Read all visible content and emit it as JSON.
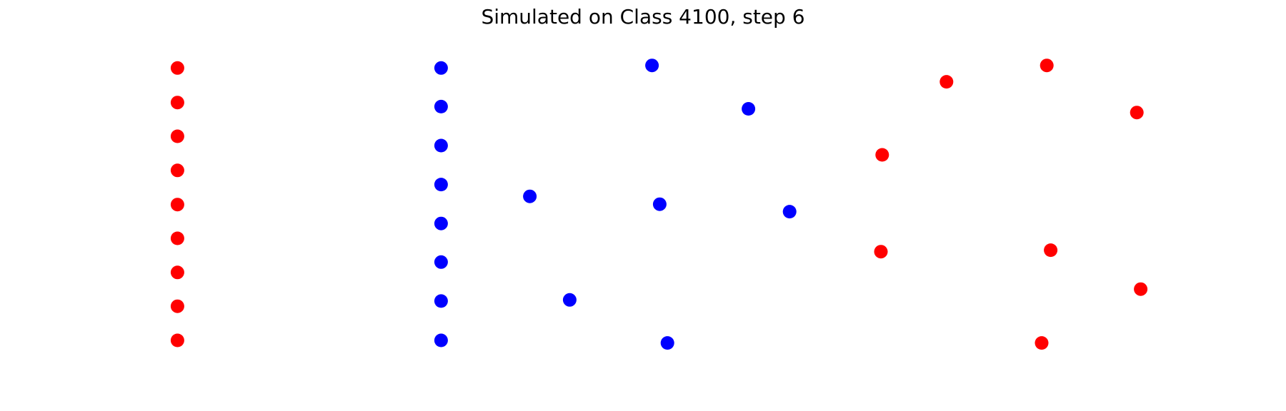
{
  "chart_data": {
    "type": "scatter",
    "title": "Simulated on Class 4100, step 6",
    "axes_visible": false,
    "grid": false,
    "xlim": [
      0,
      1
    ],
    "ylim": [
      0,
      1
    ],
    "series": [
      {
        "color": "#ff0000",
        "points": [
          {
            "x": 0.138,
            "y": 0.909
          },
          {
            "x": 0.138,
            "y": 0.816
          },
          {
            "x": 0.138,
            "y": 0.725
          },
          {
            "x": 0.138,
            "y": 0.633
          },
          {
            "x": 0.138,
            "y": 0.541
          },
          {
            "x": 0.138,
            "y": 0.45
          },
          {
            "x": 0.138,
            "y": 0.358
          },
          {
            "x": 0.138,
            "y": 0.267
          },
          {
            "x": 0.138,
            "y": 0.175
          },
          {
            "x": 0.814,
            "y": 0.916
          },
          {
            "x": 0.736,
            "y": 0.872
          },
          {
            "x": 0.884,
            "y": 0.789
          },
          {
            "x": 0.686,
            "y": 0.675
          },
          {
            "x": 0.685,
            "y": 0.414
          },
          {
            "x": 0.817,
            "y": 0.418
          },
          {
            "x": 0.887,
            "y": 0.313
          },
          {
            "x": 0.81,
            "y": 0.168
          }
        ]
      },
      {
        "color": "#0000ff",
        "points": [
          {
            "x": 0.343,
            "y": 0.909
          },
          {
            "x": 0.343,
            "y": 0.805
          },
          {
            "x": 0.343,
            "y": 0.7
          },
          {
            "x": 0.343,
            "y": 0.595
          },
          {
            "x": 0.343,
            "y": 0.49
          },
          {
            "x": 0.343,
            "y": 0.386
          },
          {
            "x": 0.343,
            "y": 0.281
          },
          {
            "x": 0.343,
            "y": 0.175
          },
          {
            "x": 0.507,
            "y": 0.916
          },
          {
            "x": 0.582,
            "y": 0.799
          },
          {
            "x": 0.412,
            "y": 0.563
          },
          {
            "x": 0.513,
            "y": 0.542
          },
          {
            "x": 0.614,
            "y": 0.522
          },
          {
            "x": 0.443,
            "y": 0.284
          },
          {
            "x": 0.519,
            "y": 0.168
          }
        ]
      }
    ]
  }
}
